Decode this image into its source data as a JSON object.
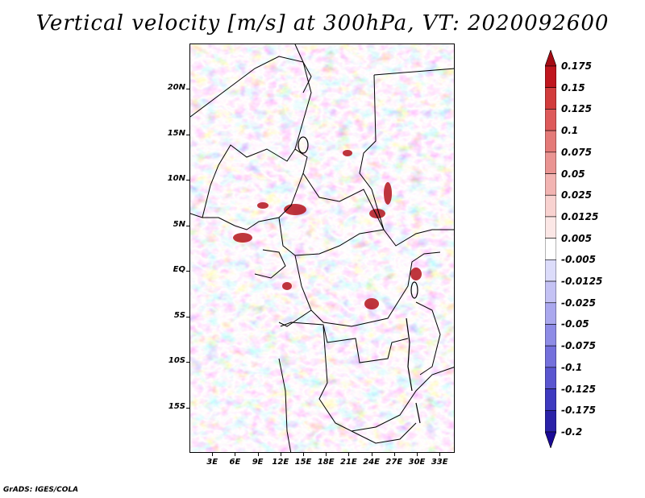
{
  "title": "Vertical velocity [m/s] at 300hPa, VT: 2020092600",
  "credit": "GrADS: IGES/COLA",
  "map": {
    "lat_labels": [
      "20N",
      "15N",
      "10N",
      "5N",
      "EQ",
      "5S",
      "10S",
      "15S"
    ],
    "lon_labels": [
      "3E",
      "6E",
      "9E",
      "12E",
      "15E",
      "18E",
      "21E",
      "24E",
      "27E",
      "30E",
      "33E"
    ],
    "lat_values": [
      20,
      15,
      10,
      5,
      0,
      -5,
      -10,
      -15
    ],
    "lon_values": [
      3,
      6,
      9,
      12,
      15,
      18,
      21,
      24,
      27,
      30,
      33
    ],
    "lon_range": [
      0,
      35
    ],
    "lat_range": [
      -20,
      25
    ]
  },
  "colorbar": {
    "labels": [
      "0.175",
      "0.15",
      "0.125",
      "0.1",
      "0.075",
      "0.05",
      "0.025",
      "0.0125",
      "0.005",
      "-0.005",
      "-0.0125",
      "-0.025",
      "-0.05",
      "-0.075",
      "-0.1",
      "-0.125",
      "-0.175",
      "-0.2"
    ],
    "colors": [
      "#a50c14",
      "#c0161e",
      "#d23c3c",
      "#de5a5a",
      "#e47a78",
      "#ea9492",
      "#f2b4b2",
      "#f8d2d0",
      "#fbe7e6",
      "#ffffff",
      "#dcdcfa",
      "#c4c2f4",
      "#aaa8ee",
      "#8e8ce6",
      "#7470dc",
      "#5a56d0",
      "#3e3ac0",
      "#2a22a8",
      "#1a0a96"
    ]
  }
}
